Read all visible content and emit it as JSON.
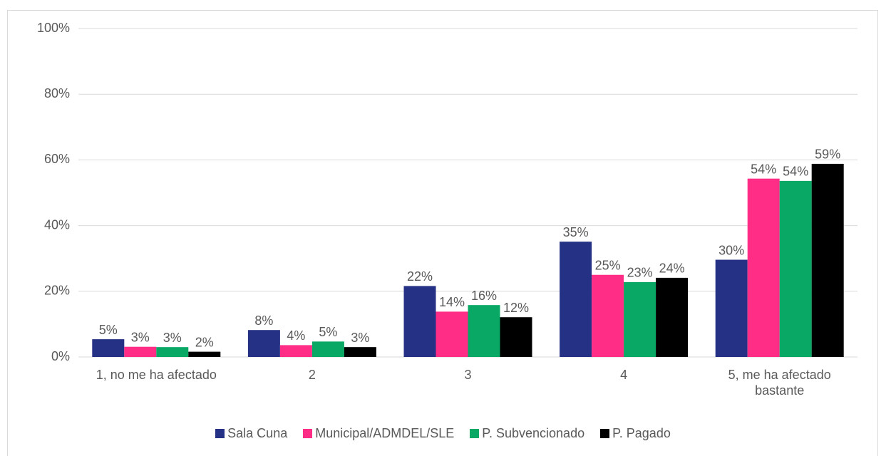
{
  "chart_data": {
    "type": "bar",
    "categories": [
      "1, no me ha afectado",
      "2",
      "3",
      "4",
      "5, me ha afectado bastante"
    ],
    "series": [
      {
        "name": "Sala Cuna",
        "color": "#243185",
        "values": [
          5.4,
          8.2,
          21.6,
          35.1,
          29.6
        ],
        "value_labels": [
          "5%",
          "8%",
          "22%",
          "35%",
          "30%"
        ]
      },
      {
        "name": "Municipal/ADMDEL/SLE",
        "color": "#ff2d86",
        "values": [
          3.1,
          3.6,
          13.8,
          25,
          54.3
        ],
        "value_labels": [
          "3%",
          "4%",
          "14%",
          "25%",
          "54%"
        ]
      },
      {
        "name": "P. Subvencionado",
        "color": "#0aa865",
        "values": [
          3.0,
          4.7,
          15.8,
          22.8,
          53.6
        ],
        "value_labels": [
          "3%",
          "5%",
          "16%",
          "23%",
          "54%"
        ]
      },
      {
        "name": "P. Pagado",
        "color": "#000000",
        "values": [
          1.6,
          3.0,
          12.1,
          24.1,
          58.8
        ],
        "value_labels": [
          "2%",
          "3%",
          "12%",
          "24%",
          "59%"
        ]
      }
    ],
    "ylim": [
      0,
      100
    ],
    "yticks": [
      {
        "value": 0,
        "label": "0%"
      },
      {
        "value": 20,
        "label": "20%"
      },
      {
        "value": 40,
        "label": "40%"
      },
      {
        "value": 60,
        "label": "60%"
      },
      {
        "value": 80,
        "label": "80%"
      },
      {
        "value": 100,
        "label": "100%"
      }
    ],
    "grid": true,
    "legend": "bottom"
  }
}
